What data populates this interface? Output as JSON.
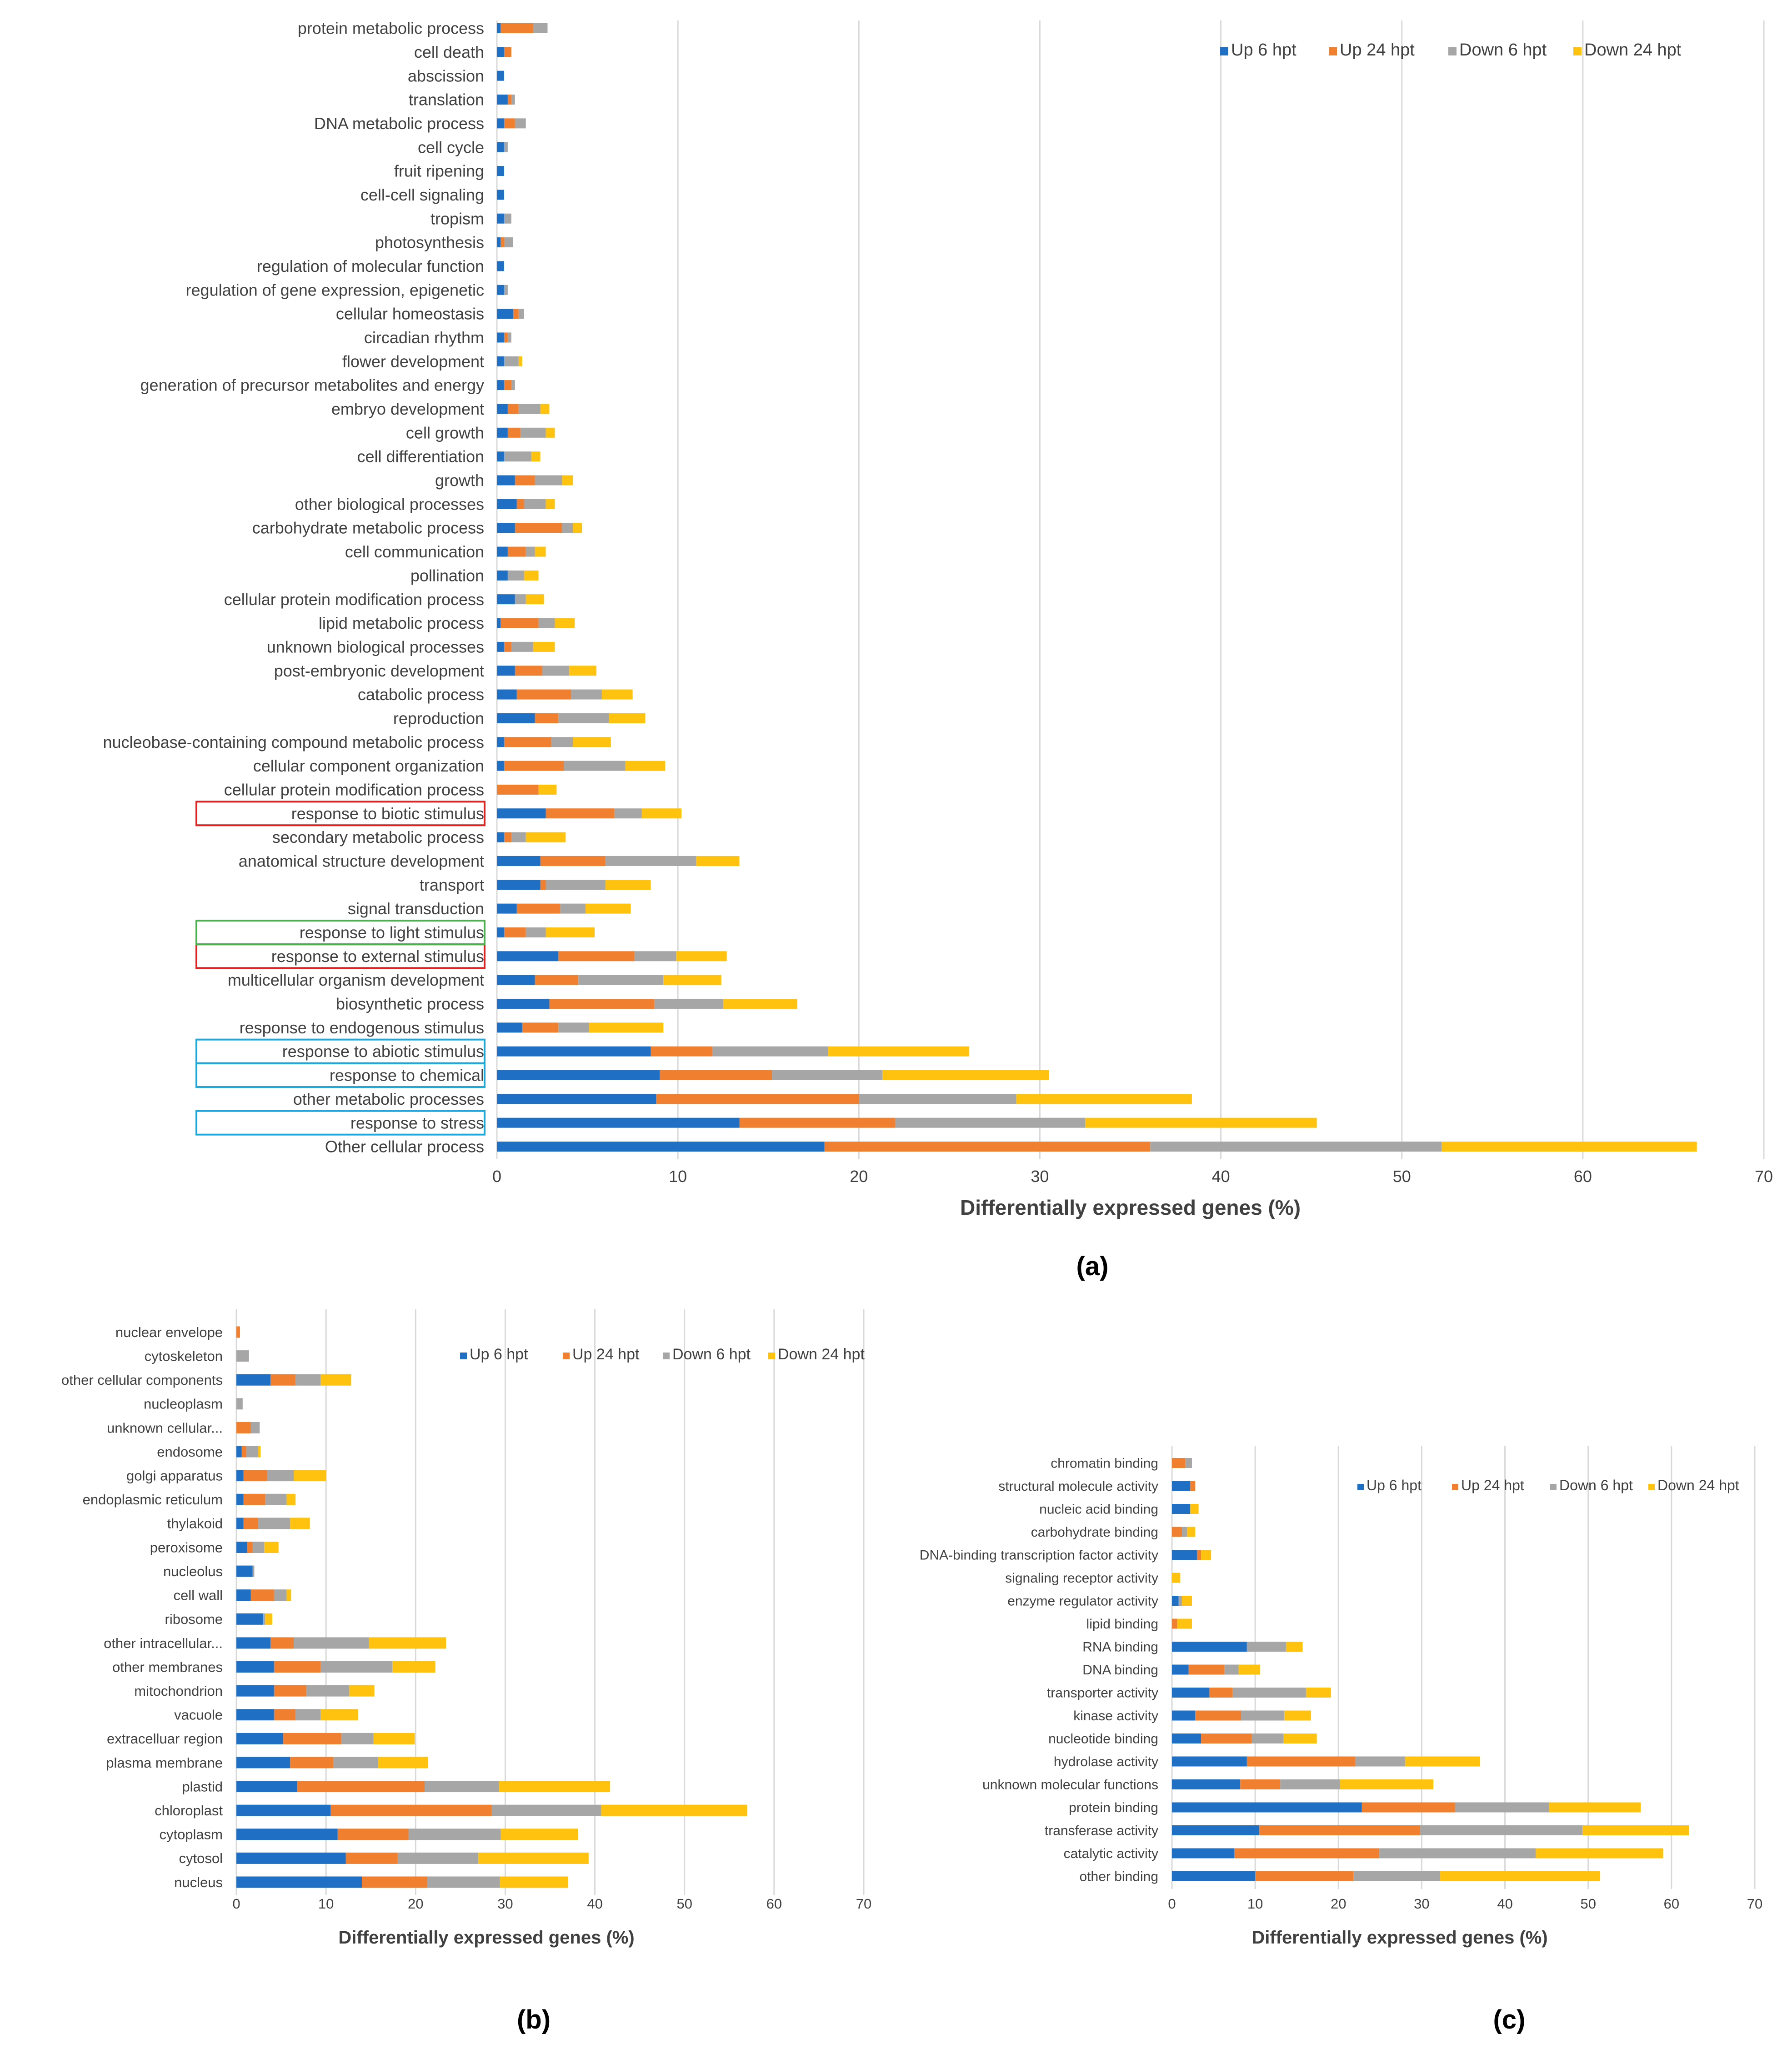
{
  "colors": {
    "up6": "#1F6FC5",
    "up24": "#F07F2F",
    "down6": "#A6A6A6",
    "down24": "#FFC20E",
    "grid": "#D9D9D9",
    "box_red": "#E02424",
    "box_green": "#4CAF50",
    "box_cyan": "#1EA7D8"
  },
  "chart_data": [
    {
      "panel": "(a)",
      "type": "bar",
      "orientation": "horizontal",
      "stacked": true,
      "xlabel": "Differentially expressed genes (%)",
      "xlim": [
        0,
        70
      ],
      "xticks": [
        "0",
        "10",
        "20",
        "30",
        "40",
        "50",
        "60",
        "70"
      ],
      "legend": [
        "Up 6 hpt",
        "Up 24 hpt",
        "Down 6 hpt",
        "Down 24 hpt"
      ],
      "legend_position": "top-right",
      "categories": [
        "protein metabolic process",
        "cell death",
        "abscission",
        "translation",
        "DNA metabolic process",
        "cell cycle",
        "fruit ripening",
        "cell-cell signaling",
        "tropism",
        "photosynthesis",
        "regulation of molecular function",
        "regulation of gene expression, epigenetic",
        "cellular homeostasis",
        "circadian rhythm",
        "flower development",
        "generation of precursor metabolites and energy",
        "embryo development",
        "cell growth",
        "cell differentiation",
        "growth",
        "other biological processes",
        "carbohydrate metabolic process",
        "cell communication",
        "pollination",
        "cellular protein modification process",
        "lipid metabolic process",
        "unknown biological processes",
        "post-embryonic development",
        "catabolic process",
        "reproduction",
        "nucleobase-containing compound metabolic process",
        "cellular component organization",
        "cellular protein modification process",
        "response to biotic stimulus",
        "secondary metabolic process",
        "anatomical structure development",
        "transport",
        "signal transduction",
        "response to light stimulus",
        "response to external stimulus",
        "multicellular organism development",
        "biosynthetic process",
        "response to endogenous stimulus",
        "response to abiotic stimulus",
        "response to chemical",
        "other metabolic processes",
        "response to stress",
        "Other cellular process"
      ],
      "highlighted": {
        "red": [
          "response to biotic stimulus",
          "response to external stimulus"
        ],
        "green": [
          "response to light stimulus"
        ],
        "cyan": [
          "response to abiotic stimulus",
          "response to chemical",
          "response to stress"
        ]
      },
      "series": [
        {
          "name": "Up 6 hpt",
          "values": [
            0.2,
            0.4,
            0.4,
            0.6,
            0.4,
            0.4,
            0.4,
            0.4,
            0.4,
            0.2,
            0.4,
            0.4,
            0.9,
            0.4,
            0.4,
            0.4,
            0.6,
            0.6,
            0.4,
            1.0,
            1.1,
            1.0,
            0.6,
            0.6,
            1.0,
            0.2,
            0.4,
            1.0,
            1.1,
            2.1,
            0.4,
            0.4,
            0.0,
            2.7,
            0.4,
            2.4,
            2.4,
            1.1,
            0.4,
            3.4,
            2.1,
            2.9,
            1.4,
            8.5,
            9.0,
            8.8,
            13.4,
            18.1
          ]
        },
        {
          "name": "Up 24 hpt",
          "values": [
            1.8,
            0.4,
            0,
            0.2,
            0.6,
            0,
            0,
            0,
            0,
            0.2,
            0,
            0,
            0.3,
            0.2,
            0,
            0.4,
            0.6,
            0.7,
            0,
            1.1,
            0.4,
            2.6,
            1.0,
            0,
            0,
            2.1,
            0.4,
            1.5,
            3.0,
            1.3,
            2.6,
            3.3,
            2.3,
            3.8,
            0.4,
            3.6,
            0.3,
            2.4,
            1.2,
            4.2,
            2.4,
            5.8,
            2.0,
            3.4,
            6.2,
            11.2,
            8.6,
            18.0
          ]
        },
        {
          "name": "Down 6 hpt",
          "values": [
            0.8,
            0,
            0,
            0.2,
            0.6,
            0.2,
            0,
            0,
            0.4,
            0.5,
            0,
            0.2,
            0.3,
            0.2,
            0.8,
            0.2,
            1.2,
            1.4,
            1.5,
            1.5,
            1.2,
            0.6,
            0.5,
            0.9,
            0.6,
            0.9,
            1.2,
            1.5,
            1.7,
            2.8,
            1.2,
            3.4,
            0,
            1.5,
            0.8,
            5.0,
            3.3,
            1.4,
            1.1,
            2.3,
            4.7,
            3.8,
            1.7,
            6.4,
            6.1,
            8.7,
            10.5,
            16.1
          ]
        },
        {
          "name": "Down 24 hpt",
          "values": [
            0,
            0,
            0,
            0,
            0,
            0,
            0,
            0,
            0,
            0,
            0,
            0,
            0,
            0,
            0.2,
            0,
            0.5,
            0.5,
            0.5,
            0.6,
            0.5,
            0.5,
            0.6,
            0.8,
            1.0,
            1.1,
            1.2,
            1.5,
            1.7,
            2.0,
            2.1,
            2.2,
            1.0,
            2.2,
            2.2,
            2.4,
            2.5,
            2.5,
            2.7,
            2.8,
            3.2,
            4.1,
            4.1,
            7.8,
            9.2,
            9.7,
            12.8,
            14.1
          ]
        }
      ]
    },
    {
      "panel": "(b)",
      "type": "bar",
      "orientation": "horizontal",
      "stacked": true,
      "xlabel": "Differentially expressed genes (%)",
      "xlim": [
        0,
        70
      ],
      "xticks": [
        "0",
        "10",
        "20",
        "30",
        "40",
        "50",
        "60",
        "70"
      ],
      "legend": [
        "Up 6 hpt",
        "Up 24 hpt",
        "Down 6 hpt",
        "Down 24 hpt"
      ],
      "legend_position": "top-right",
      "categories": [
        "nuclear envelope",
        "cytoskeleton",
        "other cellular components",
        "nucleoplasm",
        "unknown cellular...",
        "endosome",
        "golgi apparatus",
        "endoplasmic reticulum",
        "thylakoid",
        "peroxisome",
        "nucleolus",
        "cell wall",
        "ribosome",
        "other intracellular...",
        "other membranes",
        "mitochondrion",
        "vacuole",
        "extracelluar region",
        "plasma membrane",
        "plastid",
        "chloroplast",
        "cytoplasm",
        "cytosol",
        "nucleus"
      ],
      "series": [
        {
          "name": "Up 6 hpt",
          "values": [
            0,
            0,
            3.8,
            0,
            0,
            0.6,
            0.8,
            0.8,
            0.8,
            1.2,
            1.8,
            1.6,
            3.0,
            3.8,
            4.2,
            4.2,
            4.2,
            5.2,
            6.0,
            6.8,
            10.5,
            11.3,
            12.2,
            14.0
          ]
        },
        {
          "name": "Up 24 hpt",
          "values": [
            0.4,
            0,
            2.8,
            0,
            1.6,
            0.5,
            2.6,
            2.4,
            1.6,
            0.6,
            0,
            2.6,
            0,
            2.6,
            5.2,
            3.6,
            2.4,
            6.5,
            4.8,
            14.2,
            18.0,
            7.9,
            5.8,
            7.3
          ]
        },
        {
          "name": "Down 6 hpt",
          "values": [
            0,
            1.4,
            2.8,
            0.7,
            1.0,
            1.3,
            3.0,
            2.4,
            3.6,
            1.3,
            0.2,
            1.4,
            0.2,
            8.4,
            8.0,
            4.8,
            2.8,
            3.6,
            5.0,
            8.3,
            12.2,
            10.3,
            9.0,
            8.1
          ]
        },
        {
          "name": "Down 24 hpt",
          "values": [
            0,
            0,
            3.4,
            0,
            0,
            0.3,
            3.6,
            1.0,
            2.2,
            1.6,
            0,
            0.5,
            0.8,
            8.6,
            4.8,
            2.8,
            4.2,
            4.6,
            5.6,
            12.4,
            16.3,
            8.6,
            12.3,
            7.6
          ]
        }
      ]
    },
    {
      "panel": "(c)",
      "type": "bar",
      "orientation": "horizontal",
      "stacked": true,
      "xlabel": "Differentially expressed genes (%)",
      "xlim": [
        0,
        70
      ],
      "xticks": [
        "0",
        "10",
        "20",
        "30",
        "40",
        "50",
        "60",
        "70"
      ],
      "legend": [
        "Up 6 hpt",
        "Up 24 hpt",
        "Down 6 hpt",
        "Down 24 hpt"
      ],
      "legend_position": "top-right",
      "categories": [
        "chromatin binding",
        "structural molecule activity",
        "nucleic acid binding",
        "carbohydrate binding",
        "DNA-binding transcription factor activity",
        "signaling receptor activity",
        "enzyme regulator activity",
        "lipid binding",
        "RNA binding",
        "DNA binding",
        "transporter activity",
        "kinase activity",
        "nucleotide binding",
        "hydrolase activity",
        "unknown molecular functions",
        "protein binding",
        "transferase activity",
        "catalytic activity",
        "other binding"
      ],
      "series": [
        {
          "name": "Up 6 hpt",
          "values": [
            0,
            2.2,
            2.2,
            0,
            3.0,
            0,
            0.8,
            0,
            9.0,
            2.0,
            4.5,
            2.8,
            3.5,
            9.0,
            8.2,
            22.8,
            10.5,
            7.5,
            10.0
          ]
        },
        {
          "name": "Up 24 hpt",
          "values": [
            1.6,
            0.6,
            0,
            1.2,
            0.5,
            0,
            0,
            0.6,
            0,
            4.3,
            2.8,
            5.5,
            6.1,
            13.0,
            4.8,
            11.2,
            19.3,
            17.4,
            11.8
          ]
        },
        {
          "name": "Down 6 hpt",
          "values": [
            0.8,
            0,
            0,
            0.6,
            0,
            0,
            0.4,
            0,
            4.7,
            1.7,
            8.8,
            5.2,
            3.8,
            6.0,
            7.2,
            11.3,
            19.5,
            18.8,
            10.4
          ]
        },
        {
          "name": "Down 24 hpt",
          "values": [
            0,
            0,
            1.0,
            1.0,
            1.2,
            1.0,
            1.2,
            1.8,
            2.0,
            2.6,
            3.0,
            3.2,
            4.0,
            9.0,
            11.2,
            11.0,
            12.8,
            15.3,
            19.2
          ]
        }
      ]
    }
  ]
}
